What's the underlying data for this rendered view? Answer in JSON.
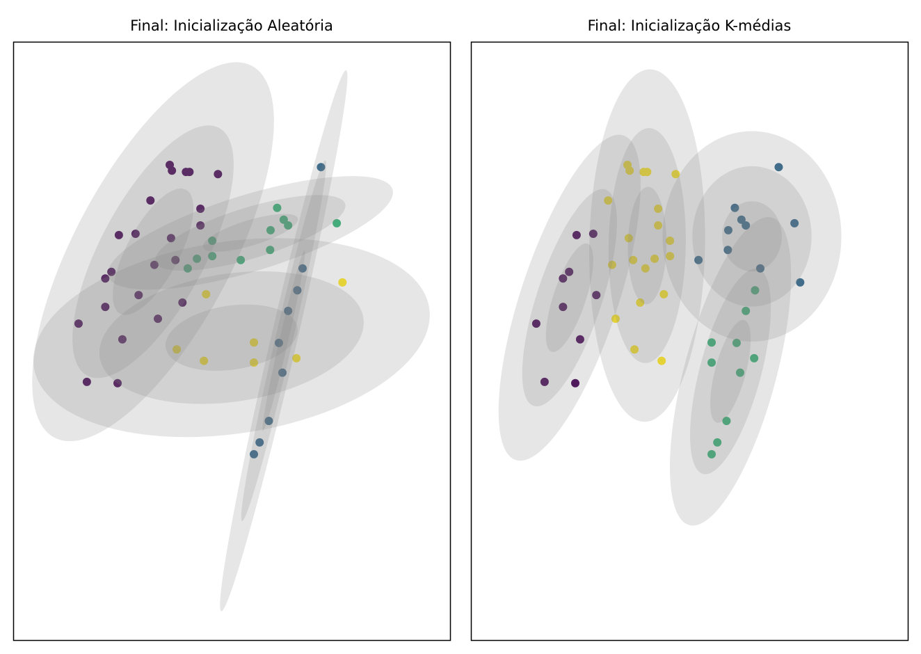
{
  "chart_data": [
    {
      "type": "scatter",
      "title": "Final: Inicialização Aleatória",
      "xlim": [
        0,
        9.98
      ],
      "ylim": [
        0,
        13.65
      ],
      "ticks": false,
      "grid": false,
      "ellipse_fill": "#808080",
      "ellipse_sigmas": [
        1,
        2,
        3
      ],
      "cluster_colors": [
        "#440154",
        "#31688e",
        "#35b779",
        "#fde725"
      ],
      "labels": [
        0,
        0,
        0,
        0,
        0,
        0,
        0,
        0,
        0,
        0,
        0,
        0,
        0,
        0,
        0,
        2,
        2,
        2,
        2,
        2,
        2,
        2,
        2,
        2,
        2,
        2,
        1,
        1,
        1,
        1,
        1,
        1,
        1,
        1,
        1,
        3,
        3,
        3,
        3,
        3,
        3,
        3,
        0,
        0,
        0,
        0,
        0,
        0,
        0,
        0
      ],
      "ellipses": [
        {
          "cx": 3.19,
          "cy": 8.86,
          "a": 1.6,
          "b": 0.6,
          "angle": 62
        },
        {
          "cx": 6.17,
          "cy": 6.83,
          "a": 2.11,
          "b": 0.1,
          "angle": 77
        },
        {
          "cx": 5.41,
          "cy": 9.29,
          "a": 1.13,
          "b": 0.29,
          "angle": 17
        },
        {
          "cx": 4.98,
          "cy": 6.9,
          "a": 1.52,
          "b": 0.73,
          "angle": 8.5
        }
      ]
    },
    {
      "type": "scatter",
      "title": "Final: Inicialização K-médias",
      "xlim": [
        0,
        9.98
      ],
      "ylim": [
        0,
        13.65
      ],
      "ticks": false,
      "grid": false,
      "ellipse_fill": "#808080",
      "ellipse_sigmas": [
        1,
        2,
        3
      ],
      "cluster_colors": [
        "#440154",
        "#31688e",
        "#35b779",
        "#fde725"
      ],
      "labels": [
        3,
        3,
        3,
        3,
        3,
        3,
        3,
        3,
        0,
        0,
        3,
        0,
        0,
        3,
        3,
        3,
        3,
        3,
        3,
        1,
        1,
        1,
        1,
        1,
        1,
        1,
        1,
        1,
        2,
        2,
        2,
        2,
        2,
        2,
        2,
        1,
        3,
        2,
        2,
        2,
        3,
        3,
        0,
        0,
        3,
        3,
        0,
        0,
        0,
        0
      ],
      "ellipses": [
        {
          "cx": 2.25,
          "cy": 7.81,
          "a": 1.3,
          "b": 0.37,
          "angle": 71.6
        },
        {
          "cx": 6.41,
          "cy": 9.21,
          "a": 0.8,
          "b": 0.68,
          "angle": 90
        },
        {
          "cx": 5.92,
          "cy": 6.13,
          "a": 1.21,
          "b": 0.35,
          "angle": 75
        },
        {
          "cx": 4.02,
          "cy": 9.0,
          "a": 1.34,
          "b": 0.44,
          "angle": 89
        }
      ]
    }
  ],
  "points": [
    [
      3.57,
      10.84
    ],
    [
      3.62,
      10.71
    ],
    [
      3.94,
      10.68
    ],
    [
      4.02,
      10.68
    ],
    [
      4.67,
      10.63
    ],
    [
      3.13,
      10.03
    ],
    [
      4.27,
      9.84
    ],
    [
      4.27,
      9.46
    ],
    [
      2.41,
      9.24
    ],
    [
      2.79,
      9.27
    ],
    [
      3.6,
      9.17
    ],
    [
      2.24,
      8.4
    ],
    [
      2.1,
      8.25
    ],
    [
      3.22,
      8.56
    ],
    [
      3.7,
      8.67
    ],
    [
      3.98,
      8.48
    ],
    [
      4.19,
      8.7
    ],
    [
      4.54,
      9.11
    ],
    [
      4.54,
      8.76
    ],
    [
      5.19,
      8.67
    ],
    [
      5.86,
      8.9
    ],
    [
      5.87,
      9.35
    ],
    [
      6.02,
      9.86
    ],
    [
      6.17,
      9.59
    ],
    [
      6.27,
      9.46
    ],
    [
      7.38,
      9.51
    ],
    [
      7.02,
      10.79
    ],
    [
      6.6,
      8.48
    ],
    [
      6.48,
      7.98
    ],
    [
      6.27,
      7.51
    ],
    [
      6.06,
      6.78
    ],
    [
      6.14,
      6.1
    ],
    [
      5.83,
      5.0
    ],
    [
      5.62,
      4.51
    ],
    [
      5.49,
      4.24
    ],
    [
      7.51,
      8.16
    ],
    [
      4.4,
      7.89
    ],
    [
      6.46,
      6.43
    ],
    [
      5.49,
      6.79
    ],
    [
      5.49,
      6.33
    ],
    [
      4.35,
      6.37
    ],
    [
      3.73,
      6.63
    ],
    [
      2.86,
      7.87
    ],
    [
      2.1,
      7.6
    ],
    [
      3.86,
      7.7
    ],
    [
      3.3,
      7.33
    ],
    [
      1.49,
      7.22
    ],
    [
      2.49,
      6.86
    ],
    [
      1.68,
      5.89
    ],
    [
      2.38,
      5.86
    ]
  ]
}
